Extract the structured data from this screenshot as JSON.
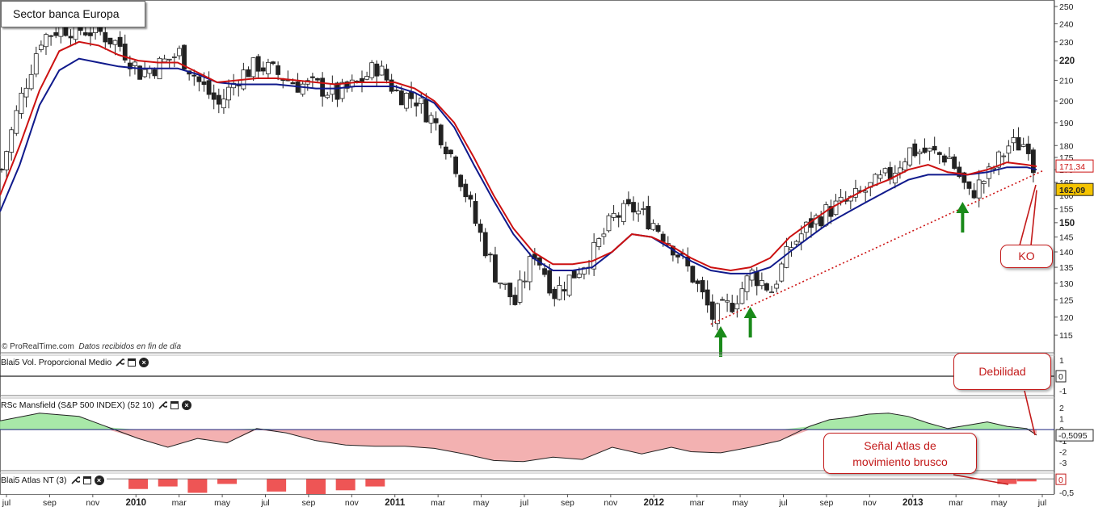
{
  "title": "Sector banca Europa",
  "source": "© ProRealTime.com",
  "source_note": "Datos recibidos en fin de día",
  "panels": {
    "vol": {
      "label": "Blai5 Vol. Proporcional Medio",
      "ticks": [
        "1",
        "0",
        "-1"
      ],
      "value": "0"
    },
    "rsc": {
      "label": "RSc Mansfield (S&P 500 INDEX) (52 10)",
      "ticks": [
        "2",
        "1",
        "0",
        "-1",
        "-2",
        "-3"
      ],
      "value": "-0,5095"
    },
    "atlas": {
      "label": "Blai5 Atlas NT (3)",
      "ticks": [
        "0",
        "-0,5"
      ],
      "value": "0"
    }
  },
  "annotations": {
    "ko": "KO",
    "debilidad": "Debilidad",
    "senal_line1": "Señal Atlas de",
    "senal_line2": "movimiento brusco"
  },
  "colors": {
    "ma_fast": "#cc1111",
    "ma_slow": "#101a8c",
    "trendline": "#cc1111",
    "arrow": "#1a8a1a",
    "rsc_positive": "#9ee59e",
    "rsc_negative": "#f2a8a8",
    "atlas_bar": "#ee5555",
    "last_price_bg": "#f5c400"
  },
  "chart_data": {
    "type": "candlestick",
    "title": "Sector banca Europa",
    "y_ticks": [
      250,
      240,
      230,
      220,
      210,
      200,
      190,
      180,
      175,
      170,
      165,
      160,
      155,
      150,
      145,
      140,
      135,
      130,
      125,
      120,
      115
    ],
    "y_ticks_bold": [
      220,
      150
    ],
    "ylim": [
      112,
      252
    ],
    "y_scale": "log",
    "x_labels": [
      "jul",
      "sep",
      "nov",
      "2010",
      "mar",
      "may",
      "jul",
      "sep",
      "nov",
      "2011",
      "mar",
      "may",
      "jul",
      "sep",
      "nov",
      "2012",
      "mar",
      "may",
      "jul",
      "sep",
      "nov",
      "2013",
      "mar",
      "may",
      "jul"
    ],
    "x_labels_bold": [
      "2010",
      "2011",
      "2012",
      "2013"
    ],
    "last_price": "162,09",
    "ma_value_label": "171,34",
    "series": [
      {
        "name": "price_close",
        "points": [
          [
            0,
            170
          ],
          [
            4,
            202
          ],
          [
            8,
            232
          ],
          [
            12,
            238
          ],
          [
            16,
            237
          ],
          [
            20,
            235
          ],
          [
            24,
            228
          ],
          [
            28,
            214
          ],
          [
            32,
            218
          ],
          [
            36,
            224
          ],
          [
            40,
            209
          ],
          [
            44,
            198
          ],
          [
            48,
            212
          ],
          [
            52,
            218
          ],
          [
            56,
            213
          ],
          [
            60,
            208
          ],
          [
            64,
            207
          ],
          [
            68,
            203
          ],
          [
            72,
            208
          ],
          [
            76,
            217
          ],
          [
            80,
            204
          ],
          [
            84,
            201
          ],
          [
            88,
            189
          ],
          [
            92,
            172
          ],
          [
            96,
            150
          ],
          [
            100,
            133
          ],
          [
            104,
            124
          ],
          [
            108,
            140
          ],
          [
            112,
            127
          ],
          [
            116,
            133
          ],
          [
            120,
            140
          ],
          [
            124,
            152
          ],
          [
            128,
            155
          ],
          [
            132,
            150
          ],
          [
            136,
            142
          ],
          [
            140,
            132
          ],
          [
            144,
            120
          ],
          [
            148,
            124
          ],
          [
            152,
            133
          ],
          [
            156,
            128
          ],
          [
            160,
            142
          ],
          [
            164,
            150
          ],
          [
            168,
            155
          ],
          [
            172,
            158
          ],
          [
            176,
            163
          ],
          [
            180,
            168
          ],
          [
            184,
            178
          ],
          [
            188,
            177
          ],
          [
            192,
            175
          ],
          [
            196,
            160
          ],
          [
            200,
            168
          ],
          [
            204,
            180
          ],
          [
            208,
            181
          ],
          [
            210,
            162
          ]
        ]
      },
      {
        "name": "ma_fast",
        "points": [
          [
            0,
            160
          ],
          [
            4,
            180
          ],
          [
            8,
            205
          ],
          [
            12,
            225
          ],
          [
            16,
            230
          ],
          [
            20,
            228
          ],
          [
            24,
            223
          ],
          [
            28,
            220
          ],
          [
            32,
            219
          ],
          [
            36,
            219
          ],
          [
            40,
            214
          ],
          [
            44,
            209
          ],
          [
            48,
            210
          ],
          [
            52,
            211
          ],
          [
            56,
            211
          ],
          [
            60,
            210
          ],
          [
            64,
            209
          ],
          [
            68,
            208
          ],
          [
            72,
            209
          ],
          [
            76,
            209
          ],
          [
            80,
            209
          ],
          [
            84,
            206
          ],
          [
            88,
            200
          ],
          [
            92,
            190
          ],
          [
            96,
            175
          ],
          [
            100,
            160
          ],
          [
            104,
            148
          ],
          [
            108,
            140
          ],
          [
            112,
            136
          ],
          [
            116,
            136
          ],
          [
            120,
            137
          ],
          [
            124,
            140
          ],
          [
            128,
            146
          ],
          [
            132,
            145
          ],
          [
            136,
            142
          ],
          [
            140,
            138
          ],
          [
            144,
            135
          ],
          [
            148,
            134
          ],
          [
            152,
            135
          ],
          [
            156,
            138
          ],
          [
            160,
            145
          ],
          [
            164,
            150
          ],
          [
            168,
            155
          ],
          [
            172,
            159
          ],
          [
            176,
            163
          ],
          [
            180,
            166
          ],
          [
            184,
            170
          ],
          [
            188,
            172
          ],
          [
            192,
            169
          ],
          [
            196,
            168
          ],
          [
            200,
            170
          ],
          [
            204,
            173
          ],
          [
            208,
            172
          ],
          [
            210,
            171.34
          ]
        ]
      },
      {
        "name": "ma_slow",
        "points": [
          [
            0,
            154
          ],
          [
            4,
            172
          ],
          [
            8,
            198
          ],
          [
            12,
            215
          ],
          [
            16,
            221
          ],
          [
            20,
            219
          ],
          [
            24,
            217
          ],
          [
            28,
            216
          ],
          [
            32,
            216
          ],
          [
            36,
            216
          ],
          [
            40,
            213
          ],
          [
            44,
            209
          ],
          [
            48,
            208
          ],
          [
            52,
            208
          ],
          [
            56,
            208
          ],
          [
            60,
            207
          ],
          [
            64,
            206
          ],
          [
            68,
            206
          ],
          [
            72,
            207
          ],
          [
            76,
            207
          ],
          [
            80,
            207
          ],
          [
            84,
            204
          ],
          [
            88,
            199
          ],
          [
            92,
            188
          ],
          [
            96,
            172
          ],
          [
            100,
            158
          ],
          [
            104,
            146
          ],
          [
            108,
            138
          ],
          [
            112,
            134
          ],
          [
            116,
            134
          ],
          [
            120,
            135
          ],
          [
            124,
            140
          ],
          [
            128,
            146
          ],
          [
            132,
            145
          ],
          [
            136,
            141
          ],
          [
            140,
            137
          ],
          [
            144,
            134
          ],
          [
            148,
            133
          ],
          [
            152,
            133
          ],
          [
            156,
            135
          ],
          [
            160,
            140
          ],
          [
            164,
            145
          ],
          [
            168,
            150
          ],
          [
            172,
            154
          ],
          [
            176,
            158
          ],
          [
            180,
            162
          ],
          [
            184,
            166
          ],
          [
            188,
            168
          ],
          [
            192,
            168
          ],
          [
            196,
            168
          ],
          [
            200,
            169
          ],
          [
            204,
            171
          ],
          [
            208,
            171
          ],
          [
            210,
            170
          ]
        ]
      }
    ],
    "rsc_mansfield": {
      "ylim": [
        -3.5,
        2.5
      ],
      "points": [
        [
          0,
          0.8
        ],
        [
          8,
          1.5
        ],
        [
          16,
          1.2
        ],
        [
          22,
          0.2
        ],
        [
          28,
          -0.8
        ],
        [
          34,
          -1.6
        ],
        [
          40,
          -0.8
        ],
        [
          46,
          -1.2
        ],
        [
          52,
          0.1
        ],
        [
          58,
          -0.3
        ],
        [
          64,
          -1.0
        ],
        [
          70,
          -1.4
        ],
        [
          76,
          -1.5
        ],
        [
          82,
          -1.5
        ],
        [
          88,
          -1.7
        ],
        [
          94,
          -2.2
        ],
        [
          100,
          -2.8
        ],
        [
          106,
          -2.9
        ],
        [
          112,
          -2.5
        ],
        [
          118,
          -2.7
        ],
        [
          124,
          -1.6
        ],
        [
          130,
          -2.2
        ],
        [
          136,
          -1.6
        ],
        [
          140,
          -2.0
        ],
        [
          146,
          -2.1
        ],
        [
          152,
          -1.6
        ],
        [
          158,
          -1.0
        ],
        [
          164,
          0.3
        ],
        [
          168,
          0.9
        ],
        [
          172,
          1.1
        ],
        [
          176,
          1.4
        ],
        [
          180,
          1.5
        ],
        [
          184,
          1.2
        ],
        [
          188,
          0.6
        ],
        [
          192,
          0.1
        ],
        [
          196,
          0.4
        ],
        [
          200,
          0.7
        ],
        [
          204,
          0.3
        ],
        [
          208,
          0.1
        ],
        [
          210,
          -0.5
        ]
      ]
    },
    "atlas_nt": {
      "ylim": [
        -0.6,
        0.1
      ],
      "bars": [
        [
          28,
          -0.4
        ],
        [
          34,
          -0.3
        ],
        [
          40,
          -0.55
        ],
        [
          46,
          -0.2
        ],
        [
          56,
          -0.5
        ],
        [
          64,
          -0.6
        ],
        [
          70,
          -0.45
        ],
        [
          76,
          -0.3
        ],
        [
          204,
          -0.2
        ],
        [
          208,
          -0.1
        ]
      ]
    }
  }
}
